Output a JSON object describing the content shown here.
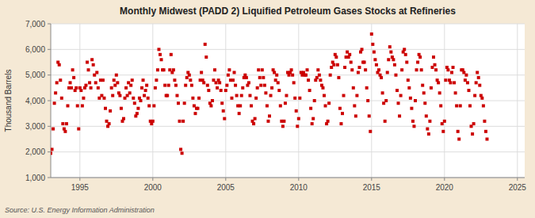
{
  "chart_data": {
    "type": "scatter",
    "title": "Monthly Midwest (PADD 2) Liquified Petroleum Gases Stocks at Refineries",
    "ylabel": "Thousand Barrels",
    "source": "Source: U.S. Energy Information Administration",
    "color": "#cc0000",
    "marker": "square",
    "grid": true,
    "xlim": [
      1993.0,
      2025.5
    ],
    "ylim": [
      1000,
      7000
    ],
    "xticks": [
      1995,
      2000,
      2005,
      2010,
      2015,
      2020,
      2025
    ],
    "yticks": [
      {
        "value": 1000,
        "label": "1,000"
      },
      {
        "value": 2000,
        "label": "2,000"
      },
      {
        "value": 3000,
        "label": "3,000"
      },
      {
        "value": 4000,
        "label": "4,000"
      },
      {
        "value": 5000,
        "label": "5,000"
      },
      {
        "value": 6000,
        "label": "6,000"
      },
      {
        "value": 7000,
        "label": "7,000"
      }
    ],
    "x": [
      1993.0,
      1993.083,
      1993.167,
      1993.25,
      1993.333,
      1993.417,
      1993.5,
      1993.583,
      1993.667,
      1993.75,
      1993.833,
      1993.917,
      1994.0,
      1994.083,
      1994.167,
      1994.25,
      1994.333,
      1994.417,
      1994.5,
      1994.583,
      1994.667,
      1994.75,
      1994.833,
      1994.917,
      1995.0,
      1995.083,
      1995.167,
      1995.25,
      1995.333,
      1995.417,
      1995.5,
      1995.583,
      1995.667,
      1995.75,
      1995.833,
      1995.917,
      1996.0,
      1996.083,
      1996.167,
      1996.25,
      1996.333,
      1996.417,
      1996.5,
      1996.583,
      1996.667,
      1996.75,
      1996.833,
      1996.917,
      1997.0,
      1997.083,
      1997.167,
      1997.25,
      1997.333,
      1997.417,
      1997.5,
      1997.583,
      1997.667,
      1997.75,
      1997.833,
      1997.917,
      1998.0,
      1998.083,
      1998.167,
      1998.25,
      1998.333,
      1998.417,
      1998.5,
      1998.583,
      1998.667,
      1998.75,
      1998.833,
      1998.917,
      1999.0,
      1999.083,
      1999.167,
      1999.25,
      1999.333,
      1999.417,
      1999.5,
      1999.583,
      1999.667,
      1999.75,
      1999.833,
      1999.917,
      2000.0,
      2000.083,
      2000.167,
      2000.25,
      2000.333,
      2000.417,
      2000.5,
      2000.583,
      2000.667,
      2000.75,
      2000.833,
      2000.917,
      2001.0,
      2001.083,
      2001.167,
      2001.25,
      2001.333,
      2001.417,
      2001.5,
      2001.583,
      2001.667,
      2001.75,
      2001.833,
      2001.917,
      2002.0,
      2002.083,
      2002.167,
      2002.25,
      2002.333,
      2002.417,
      2002.5,
      2002.583,
      2002.667,
      2002.75,
      2002.833,
      2002.917,
      2003.0,
      2003.083,
      2003.167,
      2003.25,
      2003.333,
      2003.417,
      2003.5,
      2003.583,
      2003.667,
      2003.75,
      2003.833,
      2003.917,
      2004.0,
      2004.083,
      2004.167,
      2004.25,
      2004.333,
      2004.417,
      2004.5,
      2004.583,
      2004.667,
      2004.75,
      2004.833,
      2004.917,
      2005.0,
      2005.083,
      2005.167,
      2005.25,
      2005.333,
      2005.417,
      2005.5,
      2005.583,
      2005.667,
      2005.75,
      2005.833,
      2005.917,
      2006.0,
      2006.083,
      2006.167,
      2006.25,
      2006.333,
      2006.417,
      2006.5,
      2006.583,
      2006.667,
      2006.75,
      2006.833,
      2006.917,
      2007.0,
      2007.083,
      2007.167,
      2007.25,
      2007.333,
      2007.417,
      2007.5,
      2007.583,
      2007.667,
      2007.75,
      2007.833,
      2007.917,
      2008.0,
      2008.083,
      2008.167,
      2008.25,
      2008.333,
      2008.417,
      2008.5,
      2008.583,
      2008.667,
      2008.75,
      2008.833,
      2008.917,
      2009.0,
      2009.083,
      2009.167,
      2009.25,
      2009.333,
      2009.417,
      2009.5,
      2009.583,
      2009.667,
      2009.75,
      2009.833,
      2009.917,
      2010.0,
      2010.083,
      2010.167,
      2010.25,
      2010.333,
      2010.417,
      2010.5,
      2010.583,
      2010.667,
      2010.75,
      2010.833,
      2010.917,
      2011.0,
      2011.083,
      2011.167,
      2011.25,
      2011.333,
      2011.417,
      2011.5,
      2011.583,
      2011.667,
      2011.75,
      2011.833,
      2011.917,
      2012.0,
      2012.083,
      2012.167,
      2012.25,
      2012.333,
      2012.417,
      2012.5,
      2012.583,
      2012.667,
      2012.75,
      2012.833,
      2012.917,
      2013.0,
      2013.083,
      2013.167,
      2013.25,
      2013.333,
      2013.417,
      2013.5,
      2013.583,
      2013.667,
      2013.75,
      2013.833,
      2013.917,
      2014.0,
      2014.083,
      2014.167,
      2014.25,
      2014.333,
      2014.417,
      2014.5,
      2014.583,
      2014.667,
      2014.75,
      2014.833,
      2014.917,
      2015.0,
      2015.083,
      2015.167,
      2015.25,
      2015.333,
      2015.417,
      2015.5,
      2015.583,
      2015.667,
      2015.75,
      2015.833,
      2015.917,
      2016.0,
      2016.083,
      2016.167,
      2016.25,
      2016.333,
      2016.417,
      2016.5,
      2016.583,
      2016.667,
      2016.75,
      2016.833,
      2016.917,
      2017.0,
      2017.083,
      2017.167,
      2017.25,
      2017.333,
      2017.417,
      2017.5,
      2017.583,
      2017.667,
      2017.75,
      2017.833,
      2017.917,
      2018.0,
      2018.083,
      2018.167,
      2018.25,
      2018.333,
      2018.417,
      2018.5,
      2018.583,
      2018.667,
      2018.75,
      2018.833,
      2018.917,
      2019.0,
      2019.083,
      2019.167,
      2019.25,
      2019.333,
      2019.417,
      2019.5,
      2019.583,
      2019.667,
      2019.75,
      2019.833,
      2019.917,
      2020.0,
      2020.083,
      2020.167,
      2020.25,
      2020.333,
      2020.417,
      2020.5,
      2020.583,
      2020.667,
      2020.75,
      2020.833,
      2020.917,
      2021.0,
      2021.083,
      2021.167,
      2021.25,
      2021.333,
      2021.417,
      2021.5,
      2021.583,
      2021.667,
      2021.75,
      2021.833,
      2021.917,
      2022.0,
      2022.083,
      2022.167,
      2022.25,
      2022.333,
      2022.417,
      2022.5,
      2022.583,
      2022.667,
      2022.75,
      2022.833,
      2022.917
    ],
    "values": [
      1950,
      2100,
      2900,
      3900,
      4300,
      4700,
      5500,
      5400,
      4800,
      4100,
      3100,
      2900,
      2800,
      3100,
      3800,
      4500,
      4700,
      4500,
      5200,
      4900,
      4400,
      4500,
      3800,
      2900,
      4500,
      4400,
      3800,
      4100,
      4500,
      4600,
      5500,
      5200,
      4700,
      4500,
      5600,
      5400,
      5000,
      4700,
      5100,
      4500,
      4100,
      4800,
      4200,
      4800,
      4100,
      3700,
      3200,
      3000,
      3100,
      3600,
      4500,
      4200,
      4800,
      4600,
      5000,
      4700,
      4300,
      4200,
      3700,
      3200,
      3300,
      4100,
      4500,
      4200,
      4700,
      4300,
      4600,
      4800,
      4100,
      3900,
      3400,
      3500,
      3700,
      4100,
      4000,
      4500,
      4800,
      4200,
      4400,
      4600,
      4100,
      3800,
      3200,
      3100,
      3200,
      3800,
      4500,
      4800,
      5200,
      6000,
      5800,
      5600,
      5200,
      5200,
      4600,
      4200,
      4200,
      4600,
      5200,
      5800,
      5100,
      5200,
      4800,
      4600,
      4200,
      3900,
      3200,
      2100,
      1950,
      3200,
      3900,
      4600,
      4900,
      5100,
      5000,
      4800,
      4600,
      4100,
      3800,
      3500,
      3700,
      3700,
      4100,
      4800,
      5100,
      4800,
      4700,
      6200,
      5700,
      4600,
      4400,
      3900,
      3800,
      4000,
      4800,
      5200,
      4700,
      4500,
      4800,
      4700,
      4400,
      3900,
      3600,
      3300,
      4400,
      4600,
      5000,
      5200,
      4800,
      4100,
      4800,
      5100,
      4600,
      4200,
      3800,
      3500,
      3800,
      4200,
      4500,
      4900,
      5000,
      4900,
      4600,
      4700,
      4200,
      3800,
      3200,
      3100,
      3300,
      4100,
      4500,
      5200,
      4900,
      4600,
      5200,
      4900,
      4600,
      4300,
      3800,
      3200,
      3400,
      4200,
      4500,
      5200,
      5100,
      4800,
      5000,
      4700,
      4400,
      3800,
      3200,
      3000,
      3200,
      3900,
      4200,
      5100,
      5000,
      5100,
      5200,
      5000,
      4700,
      4100,
      3600,
      3000,
      3300,
      4100,
      5100,
      5000,
      5100,
      5000,
      5000,
      5200,
      4800,
      4400,
      3700,
      3100,
      3300,
      4000,
      4800,
      4900,
      5200,
      5000,
      4800,
      4600,
      4500,
      4200,
      3800,
      3100,
      3200,
      3900,
      5000,
      5300,
      5500,
      5400,
      5800,
      5700,
      5400,
      4900,
      3700,
      3100,
      3500,
      4200,
      5300,
      5700,
      5900,
      5700,
      5800,
      5500,
      5200,
      4500,
      3800,
      3400,
      4200,
      5100,
      5300,
      5900,
      6000,
      5500,
      5500,
      5200,
      4500,
      4000,
      3400,
      2800,
      6600,
      6200,
      5900,
      5600,
      5400,
      5100,
      5200,
      5000,
      4900,
      4300,
      3900,
      3200,
      4000,
      5100,
      5600,
      6100,
      5900,
      5700,
      5600,
      5400,
      5000,
      4400,
      3900,
      3400,
      4200,
      5200,
      5900,
      6000,
      5800,
      5500,
      4800,
      4500,
      4100,
      3700,
      3200,
      3000,
      4000,
      5200,
      5500,
      5800,
      5700,
      5200,
      4600,
      4300,
      3900,
      3400,
      2900,
      2700,
      3200,
      4500,
      5300,
      5700,
      5400,
      5200,
      4800,
      4700,
      4300,
      3800,
      3100,
      2800,
      3200,
      4800,
      5300,
      5200,
      4800,
      4700,
      5100,
      5300,
      4700,
      4300,
      3800,
      2800,
      2500,
      3800,
      5200,
      5200,
      5100,
      4800,
      5000,
      4700,
      4400,
      3800,
      3000,
      2700,
      3100,
      4200,
      4700,
      5100,
      4900,
      4600,
      4200,
      4100,
      3800,
      3200,
      2800,
      2500
    ]
  }
}
